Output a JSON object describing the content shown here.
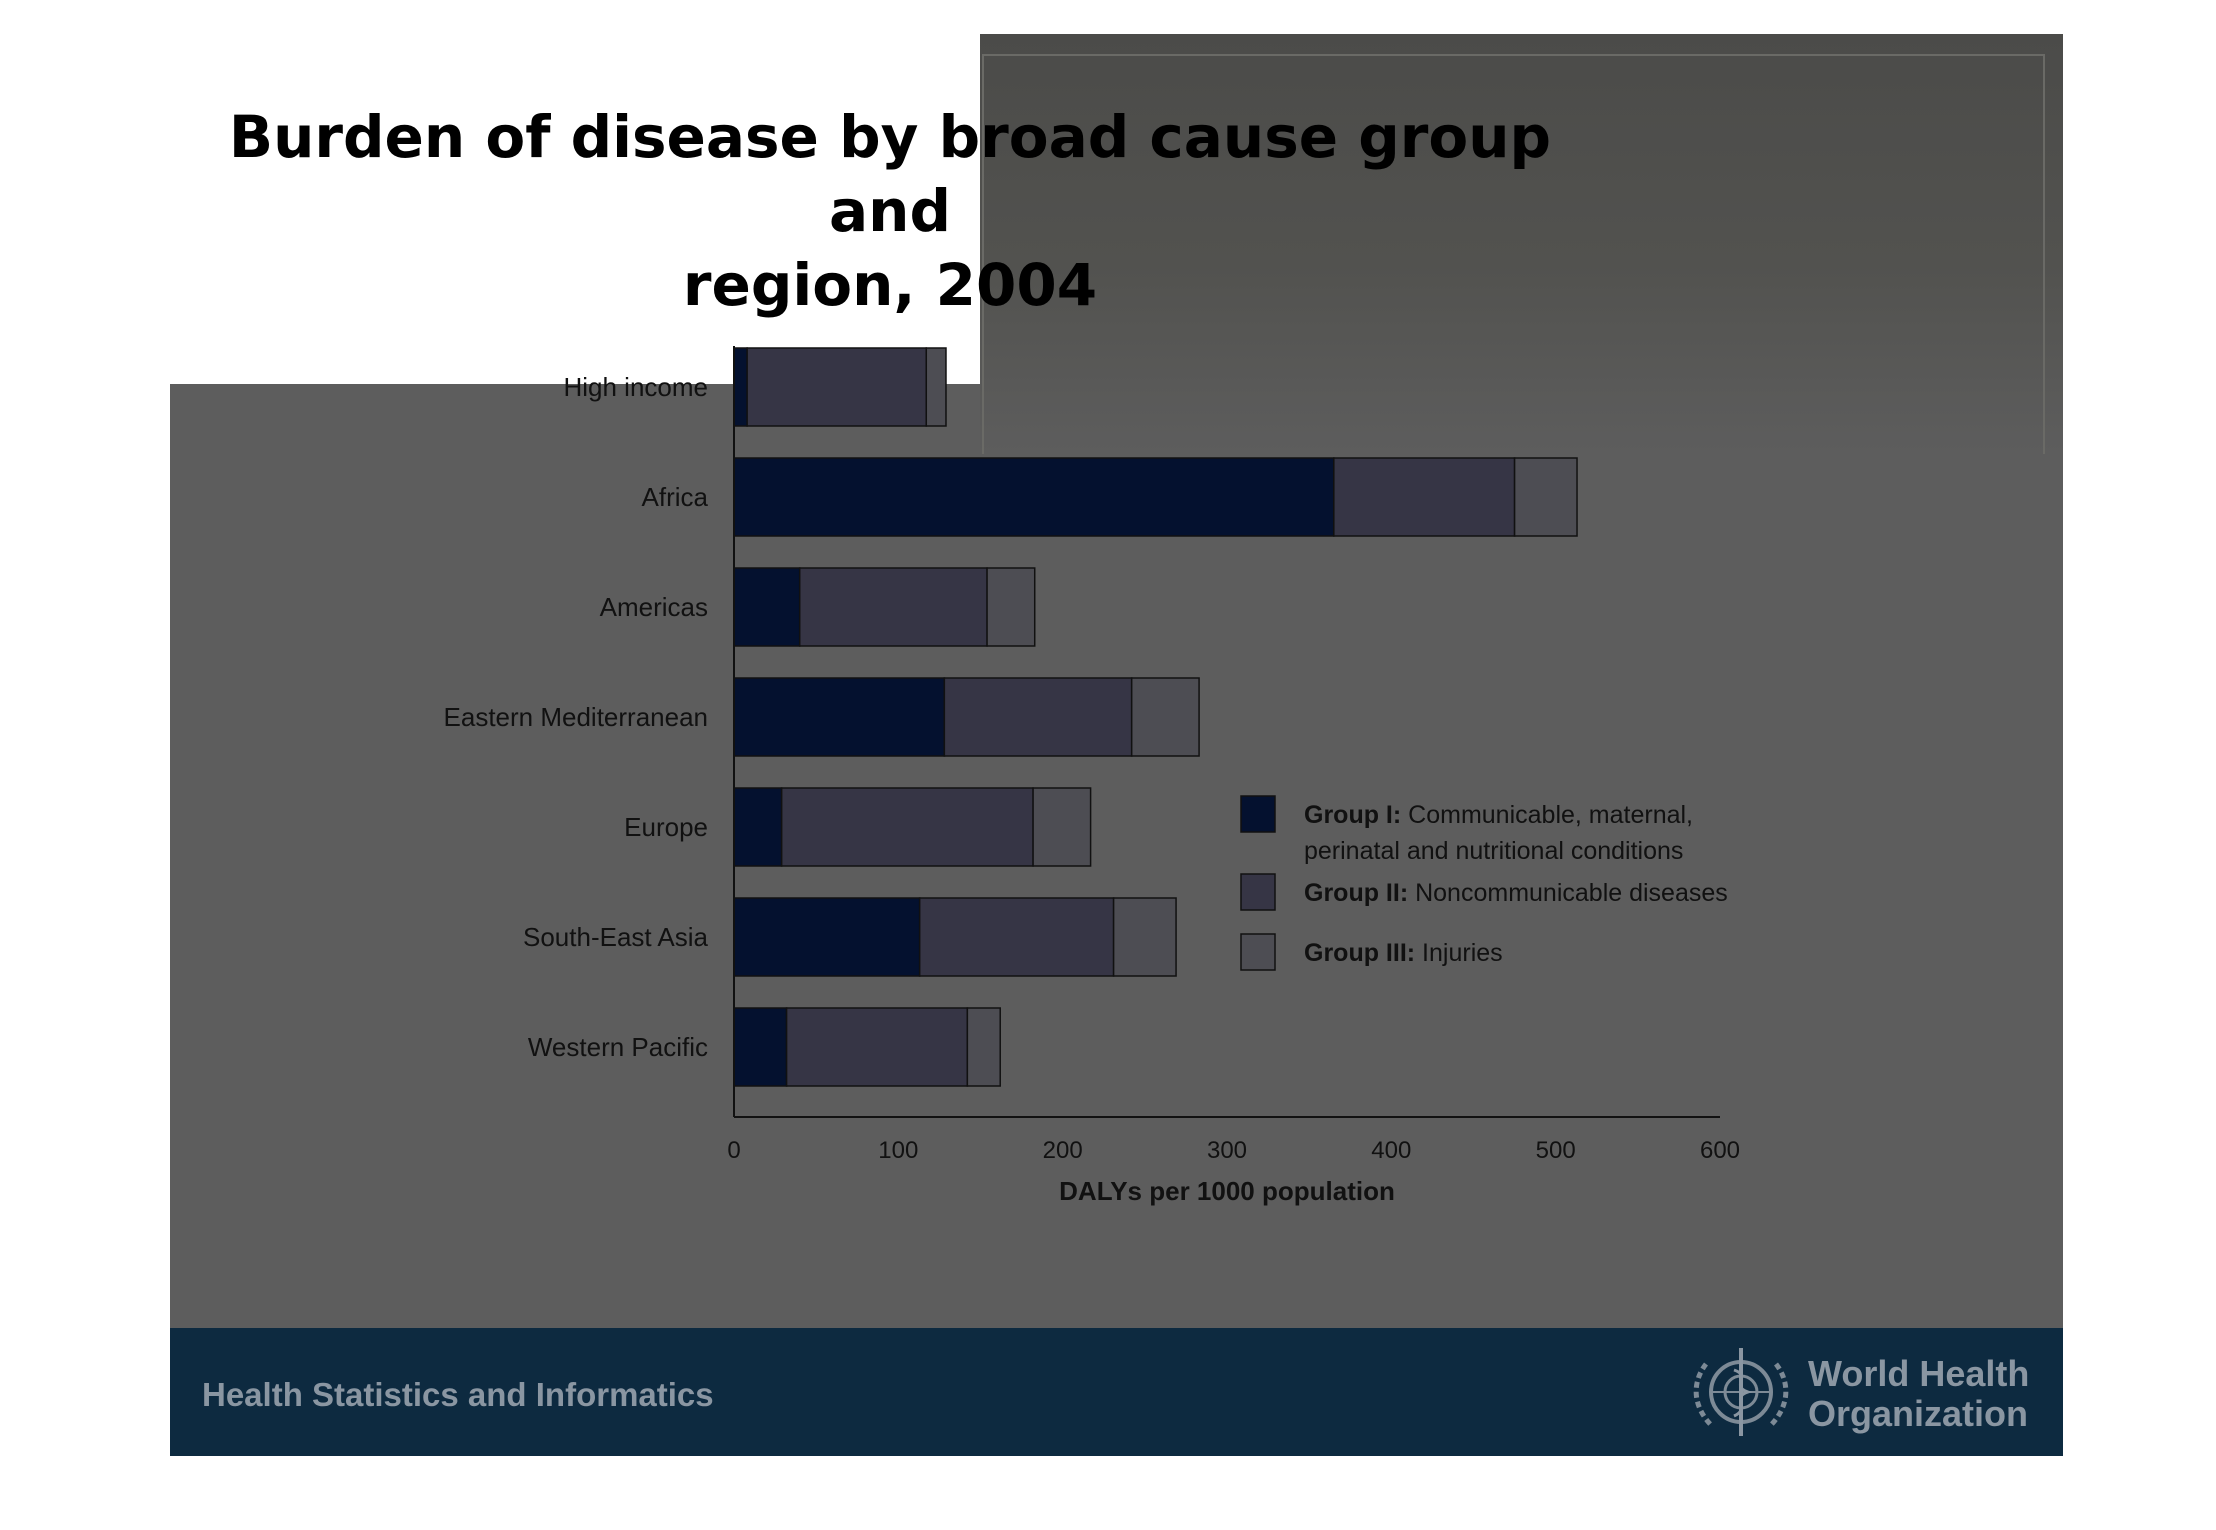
{
  "slide": {
    "title_line1": "Burden of disease by broad cause group and",
    "title_line2": "region, 2004",
    "footer_text": "Health Statistics and Informatics",
    "org_name_line1": "World Health",
    "org_name_line2": "Organization"
  },
  "colors": {
    "group1": "#04112f",
    "group2": "#363545",
    "group3": "#4d4d53",
    "slide_background": "#5d5d5d",
    "footer_background": "#0d2a40"
  },
  "chart_data": {
    "type": "bar",
    "orientation": "horizontal",
    "stacked": true,
    "categories": [
      "High income",
      "Africa",
      "Americas",
      "Eastern Mediterranean",
      "Europe",
      "South-East Asia",
      "Western Pacific"
    ],
    "series": [
      {
        "name_bold": "Group I:",
        "name_rest": "Communicable, maternal,",
        "name_rest2": "perinatal and nutritional conditions",
        "values": [
          8,
          365,
          40,
          128,
          29,
          113,
          32
        ]
      },
      {
        "name_bold": "Group II:",
        "name_rest": "Noncommunicable diseases",
        "values": [
          109,
          110,
          114,
          114,
          153,
          118,
          110
        ]
      },
      {
        "name_bold": "Group III:",
        "name_rest": "Injuries",
        "values": [
          12,
          38,
          29,
          41,
          35,
          38,
          20
        ]
      }
    ],
    "xlabel": "DALYs per 1000 population",
    "xlim": [
      0,
      600
    ],
    "xticks": [
      0,
      100,
      200,
      300,
      400,
      500,
      600
    ],
    "legend_position": "right"
  }
}
